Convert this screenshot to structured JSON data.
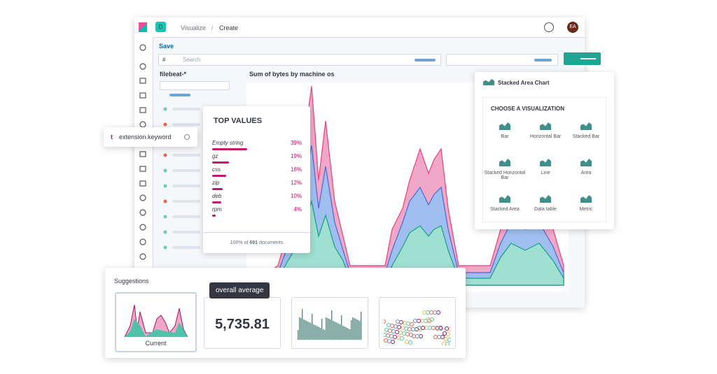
{
  "header": {
    "space_badge": "D",
    "breadcrumbs": [
      "Visualize",
      "Create"
    ],
    "avatar": "EA"
  },
  "toolbar": {
    "save": "Save",
    "query_language": "#",
    "search_placeholder": "Search"
  },
  "sidebar": {
    "index_pattern": "filebeat-*"
  },
  "chart": {
    "title": "Sum of bytes by machine os"
  },
  "field": {
    "type_icon": "t",
    "name": "extension.keyword"
  },
  "top_values": {
    "title": "TOP VALUES",
    "rows": [
      {
        "label": "Empty string",
        "value": 39,
        "value_label": "39%"
      },
      {
        "label": "gz",
        "value": 19,
        "value_label": "19%"
      },
      {
        "label": "css",
        "value": 16,
        "value_label": "16%"
      },
      {
        "label": "zip",
        "value": 12,
        "value_label": "12%"
      },
      {
        "label": "deb",
        "value": 10,
        "value_label": "10%"
      },
      {
        "label": "rpm",
        "value": 4,
        "value_label": "4%"
      }
    ],
    "footer": {
      "share": "100% of",
      "count": "691",
      "unit": "documents"
    }
  },
  "chooser": {
    "current": "Stacked Area Chart",
    "heading": "CHOOSE A VISUALIZATION",
    "options": [
      "Bar",
      "Horizontal Bar",
      "Stacked Bar",
      "Stacked Horizontal Bar",
      "Line",
      "Area",
      "Stacked Area",
      "Data table",
      "Metric"
    ]
  },
  "suggestions": {
    "title": "Suggestions",
    "current": "Current",
    "tooltip": "overall average",
    "metric": "5,735.81"
  }
}
